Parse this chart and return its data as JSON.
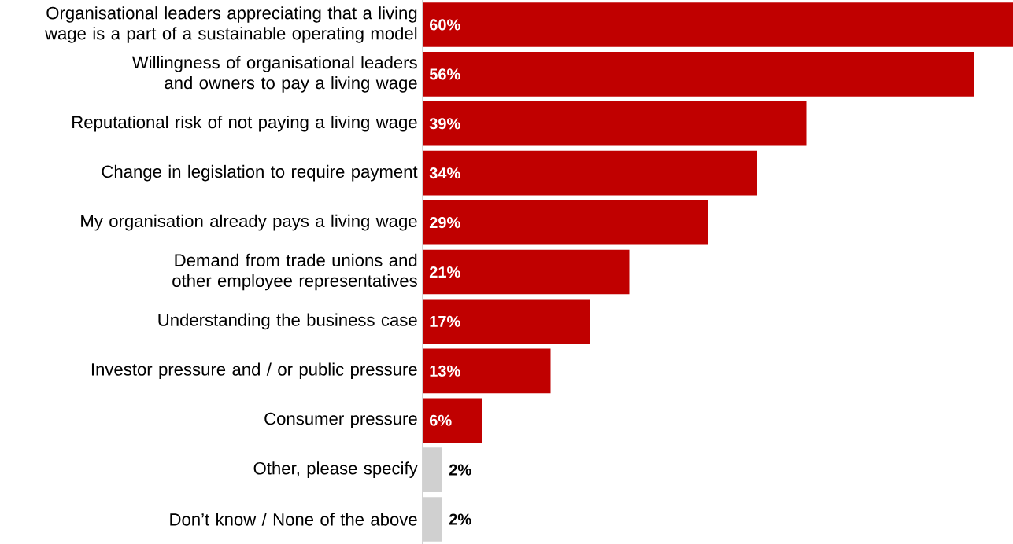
{
  "chart_data": {
    "type": "bar",
    "orientation": "horizontal",
    "categories": [
      "Organisational leaders appreciating that a living wage is a part of a sustainable operating model",
      "Willingness of organisational leaders and owners to pay a living wage",
      "Reputational risk of not paying a living wage",
      "Change in legislation to require payment",
      "My organisation already pays a living wage",
      "Demand from trade unions and other employee representatives",
      "Understanding the business case",
      "Investor pressure and / or public pressure",
      "Consumer pressure",
      "Other, please specify",
      "Don’t know / None of the above"
    ],
    "values": [
      60,
      56,
      39,
      34,
      29,
      21,
      17,
      13,
      6,
      2,
      2
    ],
    "colors": [
      "#c00000",
      "#c00000",
      "#c00000",
      "#c00000",
      "#c00000",
      "#c00000",
      "#c00000",
      "#c00000",
      "#c00000",
      "#d0d0d0",
      "#d0d0d0"
    ],
    "value_labels": [
      "60%",
      "56%",
      "39%",
      "34%",
      "29%",
      "21%",
      "17%",
      "13%",
      "6%",
      "2%",
      "2%"
    ]
  }
}
